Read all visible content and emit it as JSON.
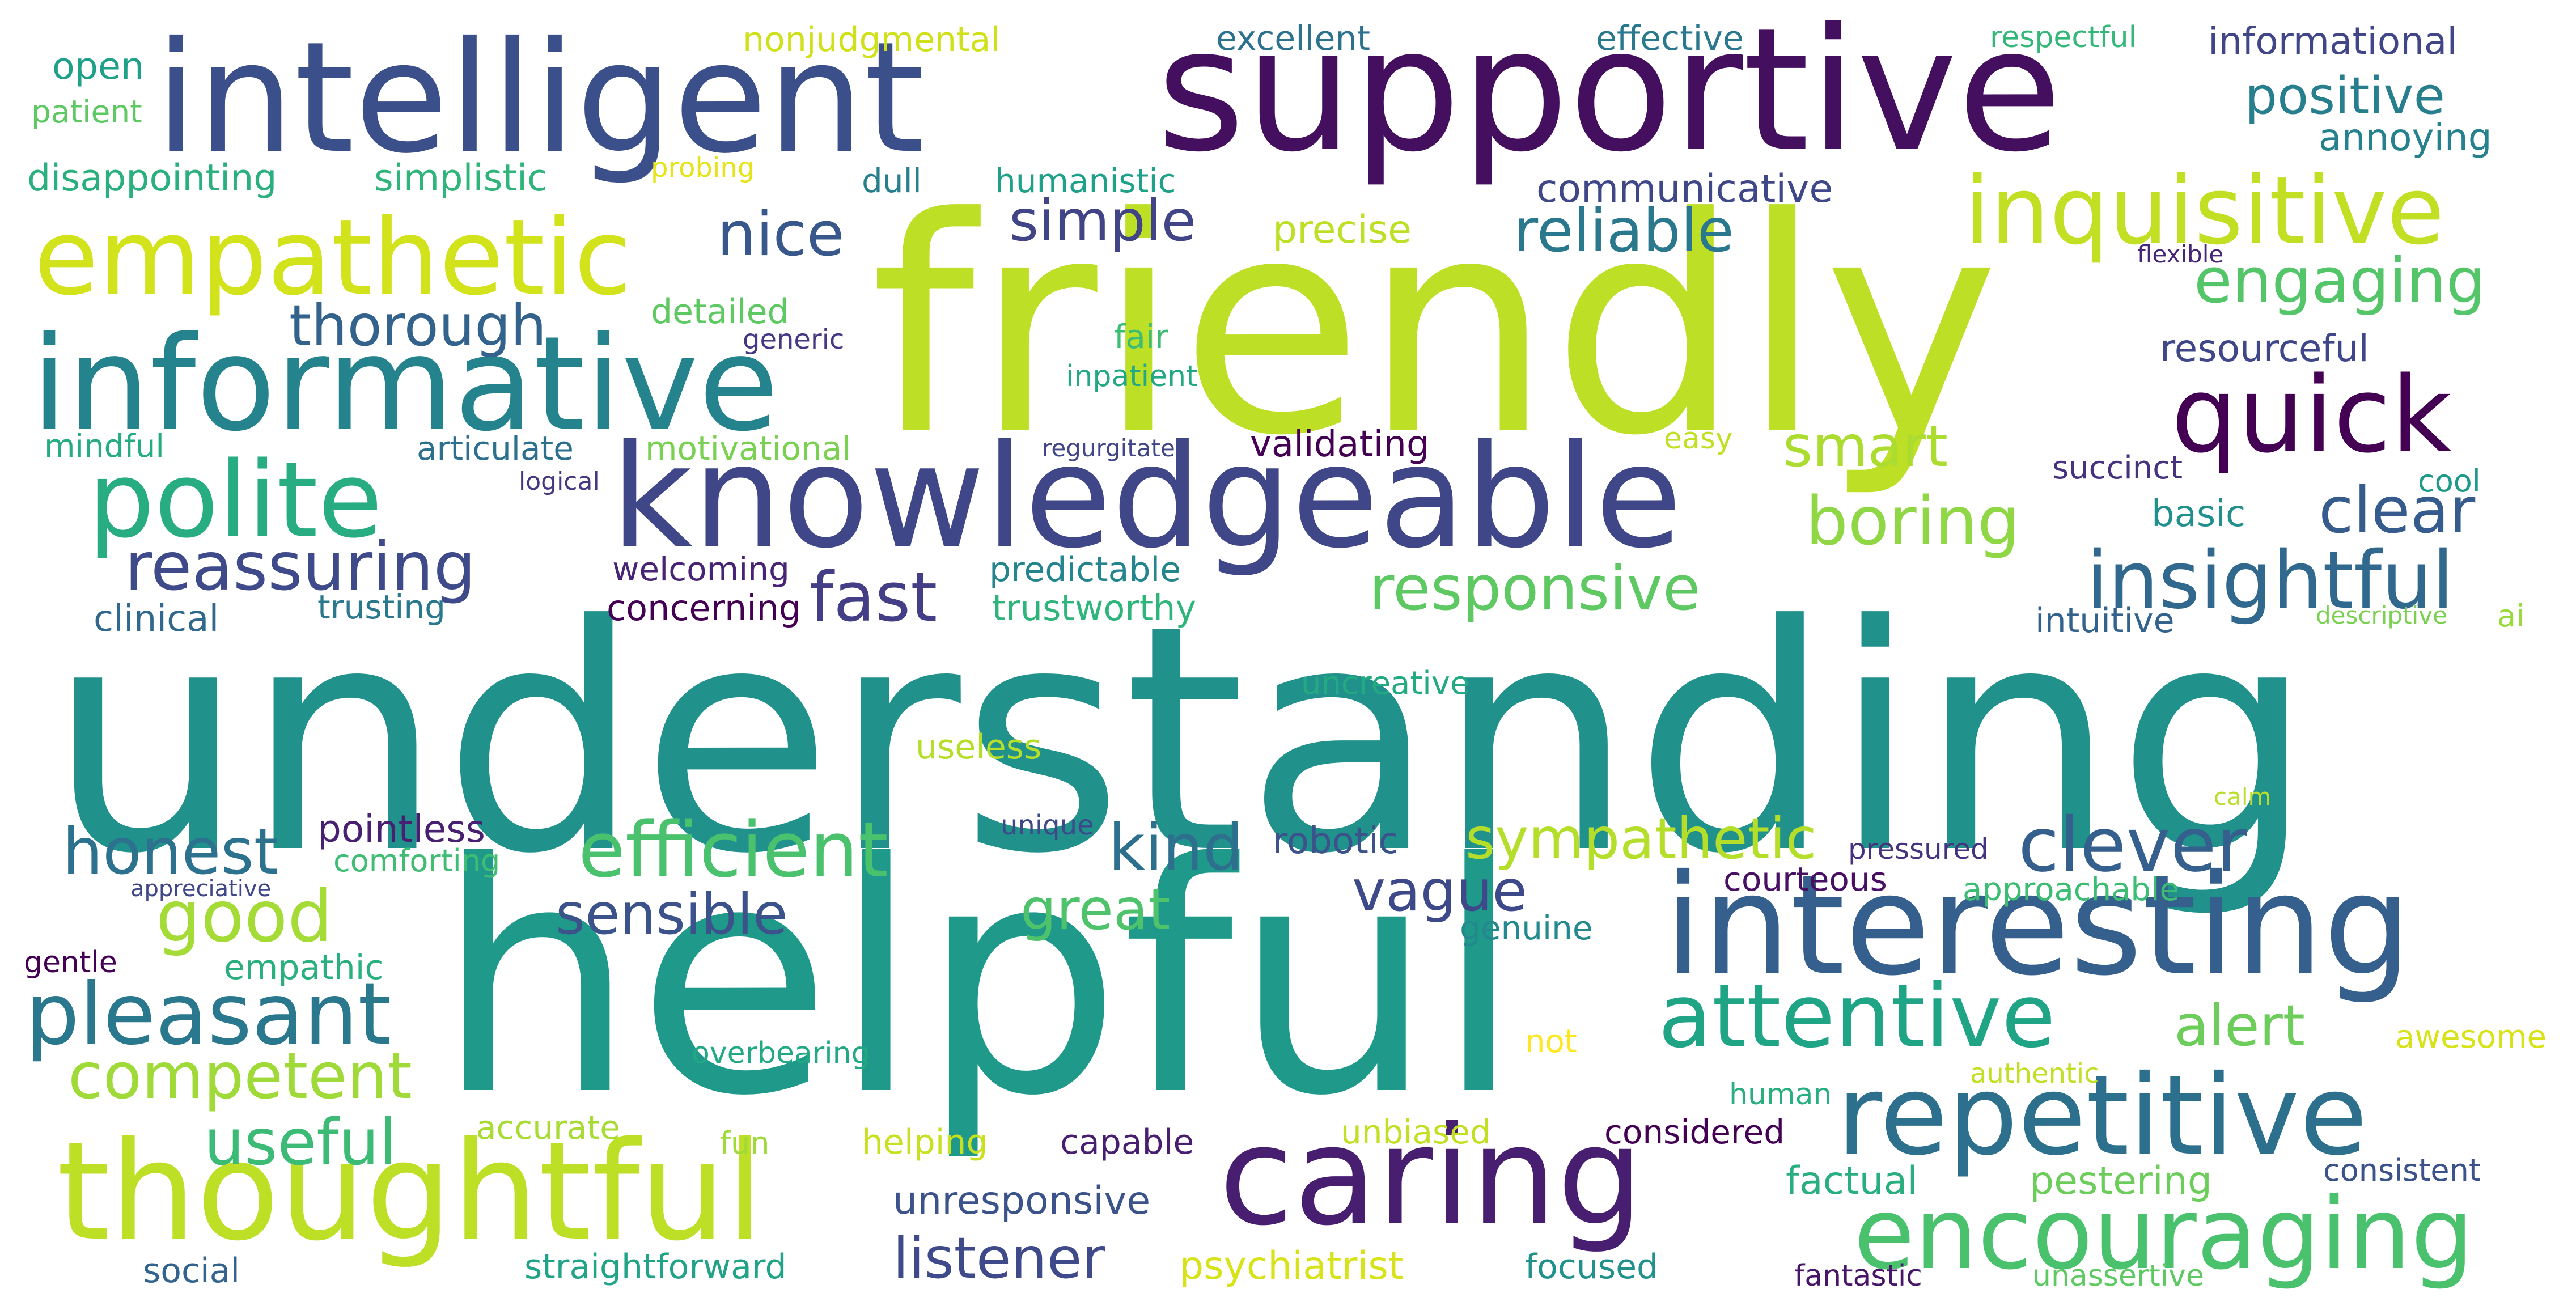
{
  "words": [
    {
      "text": "understanding",
      "color": "#21918c"
    },
    {
      "text": "helpful",
      "color": "#1f9a8a"
    },
    {
      "text": "friendly",
      "color": "#bddf26"
    },
    {
      "text": "supportive",
      "color": "#440f5e"
    },
    {
      "text": "intelligent",
      "color": "#3b4f8a"
    },
    {
      "text": "knowledgeable",
      "color": "#3f4788"
    },
    {
      "text": "interesting",
      "color": "#355f8d"
    },
    {
      "text": "informative",
      "color": "#25838e"
    },
    {
      "text": "thoughtful",
      "color": "#bddf26"
    },
    {
      "text": "caring",
      "color": "#481f70"
    },
    {
      "text": "repetitive",
      "color": "#2d708e"
    },
    {
      "text": "encouraging",
      "color": "#4ac16d"
    },
    {
      "text": "empathetic",
      "color": "#d2e21b"
    },
    {
      "text": "inquisitive",
      "color": "#c2df23"
    },
    {
      "text": "polite",
      "color": "#27ad81"
    },
    {
      "text": "quick",
      "color": "#440154"
    },
    {
      "text": "attentive",
      "color": "#20a486"
    },
    {
      "text": "pleasant",
      "color": "#2a788e"
    },
    {
      "text": "insightful",
      "color": "#31688e"
    },
    {
      "text": "efficient",
      "color": "#4ac16d"
    },
    {
      "text": "reliable",
      "color": "#2a788e"
    },
    {
      "text": "responsive",
      "color": "#5ec962"
    },
    {
      "text": "reassuring",
      "color": "#3e4a89"
    },
    {
      "text": "good",
      "color": "#a5db36"
    },
    {
      "text": "honest",
      "color": "#2c728e"
    },
    {
      "text": "clever",
      "color": "#355f8d"
    },
    {
      "text": "boring",
      "color": "#8fd744"
    },
    {
      "text": "fast",
      "color": "#433e85"
    },
    {
      "text": "competent",
      "color": "#a0da39"
    },
    {
      "text": "useful",
      "color": "#3bbb75"
    },
    {
      "text": "listener",
      "color": "#3e4a89"
    },
    {
      "text": "engaging",
      "color": "#54c568"
    },
    {
      "text": "thorough",
      "color": "#33638d"
    },
    {
      "text": "kind",
      "color": "#2d708e"
    },
    {
      "text": "sympathetic",
      "color": "#b5de2b"
    },
    {
      "text": "great",
      "color": "#4ec36b"
    },
    {
      "text": "nice",
      "color": "#38588c"
    },
    {
      "text": "simple",
      "color": "#414487"
    },
    {
      "text": "smart",
      "color": "#addc30"
    },
    {
      "text": "clear",
      "color": "#365c8d"
    },
    {
      "text": "sensible",
      "color": "#3b528b"
    },
    {
      "text": "vague",
      "color": "#3e4989"
    },
    {
      "text": "alert",
      "color": "#6ccd5a"
    },
    {
      "text": "positive",
      "color": "#277f8e"
    },
    {
      "text": "psychiatrist",
      "color": "#d8e219"
    },
    {
      "text": "unresponsive",
      "color": "#3b528b"
    },
    {
      "text": "factual",
      "color": "#29af7f"
    },
    {
      "text": "pestering",
      "color": "#6ccd5a"
    },
    {
      "text": "straightforward",
      "color": "#20a386"
    },
    {
      "text": "nonjudgmental",
      "color": "#d0e11c"
    },
    {
      "text": "excellent",
      "color": "#2c728e"
    },
    {
      "text": "effective",
      "color": "#2a788e"
    },
    {
      "text": "respectful",
      "color": "#35b779"
    },
    {
      "text": "informational",
      "color": "#404688"
    },
    {
      "text": "open",
      "color": "#1fa088"
    },
    {
      "text": "patient",
      "color": "#5ec962"
    },
    {
      "text": "disappointing",
      "color": "#2ab07f"
    },
    {
      "text": "simplistic",
      "color": "#2fb47c"
    },
    {
      "text": "probing",
      "color": "#e5e419"
    },
    {
      "text": "dull",
      "color": "#277f8e"
    },
    {
      "text": "humanistic",
      "color": "#1fa088"
    },
    {
      "text": "communicative",
      "color": "#3f4788"
    },
    {
      "text": "annoying",
      "color": "#26818e"
    },
    {
      "text": "precise",
      "color": "#bddf26"
    },
    {
      "text": "flexible",
      "color": "#482677"
    },
    {
      "text": "detailed",
      "color": "#5ec962"
    },
    {
      "text": "generic",
      "color": "#453781"
    },
    {
      "text": "fair",
      "color": "#3dbc74"
    },
    {
      "text": "inpatient",
      "color": "#22a884"
    },
    {
      "text": "resourceful",
      "color": "#3f4788"
    },
    {
      "text": "mindful",
      "color": "#25ac82"
    },
    {
      "text": "articulate",
      "color": "#2d708e"
    },
    {
      "text": "motivational",
      "color": "#7ad151"
    },
    {
      "text": "regurgitate",
      "color": "#404688"
    },
    {
      "text": "validating",
      "color": "#440154"
    },
    {
      "text": "easy",
      "color": "#c2df23"
    },
    {
      "text": "logical",
      "color": "#453781"
    },
    {
      "text": "succinct",
      "color": "#46327e"
    },
    {
      "text": "cool",
      "color": "#1f9a8a"
    },
    {
      "text": "basic",
      "color": "#21908d"
    },
    {
      "text": "welcoming",
      "color": "#482475"
    },
    {
      "text": "predictable",
      "color": "#25858e"
    },
    {
      "text": "clinical",
      "color": "#31688e"
    },
    {
      "text": "trusting",
      "color": "#2a788e"
    },
    {
      "text": "concerning",
      "color": "#440154"
    },
    {
      "text": "trustworthy",
      "color": "#2fb47c"
    },
    {
      "text": "intuitive",
      "color": "#33638d"
    },
    {
      "text": "descriptive",
      "color": "#7ad151"
    },
    {
      "text": "ai",
      "color": "#9bd93c"
    },
    {
      "text": "uncreative",
      "color": "#24aa83"
    },
    {
      "text": "useless",
      "color": "#b5de2b"
    },
    {
      "text": "calm",
      "color": "#b8de29"
    },
    {
      "text": "pointless",
      "color": "#482071"
    },
    {
      "text": "unique",
      "color": "#3e4989"
    },
    {
      "text": "robotic",
      "color": "#3b528b"
    },
    {
      "text": "pressured",
      "color": "#46337f"
    },
    {
      "text": "comforting",
      "color": "#40bd72"
    },
    {
      "text": "appreciative",
      "color": "#3f4788"
    },
    {
      "text": "courteous",
      "color": "#471063"
    },
    {
      "text": "approachable",
      "color": "#3dbc74"
    },
    {
      "text": "genuine",
      "color": "#23898e"
    },
    {
      "text": "empathic",
      "color": "#2ab07f"
    },
    {
      "text": "gentle",
      "color": "#440154"
    },
    {
      "text": "not",
      "color": "#fde725"
    },
    {
      "text": "awesome",
      "color": "#d8e219"
    },
    {
      "text": "overbearing",
      "color": "#22a884"
    },
    {
      "text": "authentic",
      "color": "#c0df25"
    },
    {
      "text": "human",
      "color": "#29af7f"
    },
    {
      "text": "accurate",
      "color": "#a8db34"
    },
    {
      "text": "fun",
      "color": "#9fda3a"
    },
    {
      "text": "helping",
      "color": "#c8e020"
    },
    {
      "text": "capable",
      "color": "#481f70"
    },
    {
      "text": "unbiased",
      "color": "#c2df23"
    },
    {
      "text": "considered",
      "color": "#440154"
    },
    {
      "text": "consistent",
      "color": "#3b528b"
    },
    {
      "text": "social",
      "color": "#33638d"
    },
    {
      "text": "focused",
      "color": "#21918c"
    },
    {
      "text": "fantastic",
      "color": "#481668"
    },
    {
      "text": "unassertive",
      "color": "#5ec962"
    }
  ]
}
